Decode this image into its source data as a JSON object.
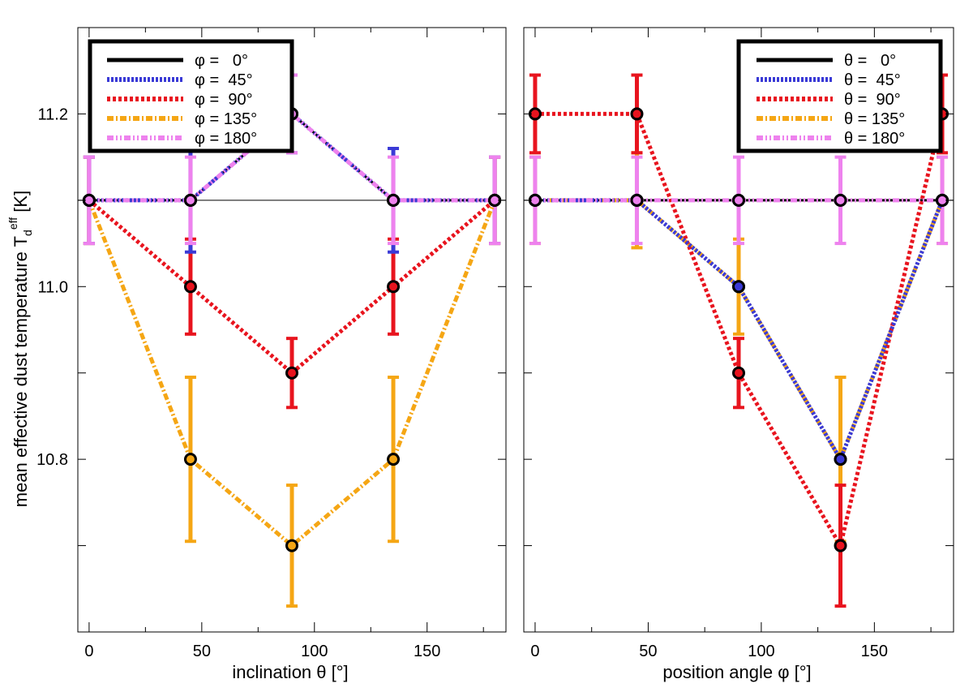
{
  "chart_data": [
    {
      "type": "line",
      "xlabel": "inclination θ [°]",
      "ylabel_main": "mean effective dust temperature T",
      "ylabel_sub": "d",
      "ylabel_sup": "eff",
      "ylabel_unit": " [K]",
      "xlim": [
        -5,
        185
      ],
      "ylim": [
        10.6,
        11.3
      ],
      "xticks": [
        0,
        50,
        100,
        150
      ],
      "yticks": [
        10.8,
        11.0,
        11.2
      ],
      "legend_position": "top-left",
      "series": [
        {
          "name": "φ =   0°",
          "color": "#000000",
          "style": "solid",
          "x": [
            0,
            45,
            90,
            135,
            180
          ],
          "y": [
            11.1,
            11.1,
            11.2,
            11.1,
            11.1
          ],
          "err": [
            0,
            0,
            0,
            0,
            0
          ]
        },
        {
          "name": "φ =  45°",
          "color": "#3a3ad6",
          "style": "dotted",
          "x": [
            0,
            45,
            90,
            135,
            180
          ],
          "y": [
            11.1,
            11.1,
            11.2,
            11.1,
            11.1
          ],
          "err": [
            0.05,
            0.06,
            0.045,
            0.06,
            0.05
          ]
        },
        {
          "name": "φ =  90°",
          "color": "#e8141e",
          "style": "dashed",
          "x": [
            0,
            45,
            90,
            135,
            180
          ],
          "y": [
            11.1,
            11.0,
            10.9,
            11.0,
            11.1
          ],
          "err": [
            0.05,
            0.055,
            0.04,
            0.055,
            0.05
          ]
        },
        {
          "name": "φ = 135°",
          "color": "#f5a614",
          "style": "dashdot",
          "x": [
            0,
            45,
            90,
            135,
            180
          ],
          "y": [
            11.1,
            10.8,
            10.7,
            10.8,
            11.1
          ],
          "err": [
            0.05,
            0.095,
            0.07,
            0.095,
            0.05
          ]
        },
        {
          "name": "φ = 180°",
          "color": "#ee82ee",
          "style": "dashdotdot",
          "x": [
            0,
            45,
            90,
            135,
            180
          ],
          "y": [
            11.1,
            11.1,
            11.2,
            11.1,
            11.1
          ],
          "err": [
            0.05,
            0.05,
            0.045,
            0.05,
            0.05
          ]
        }
      ]
    },
    {
      "type": "line",
      "xlabel": "position angle φ [°]",
      "xlim": [
        -5,
        185
      ],
      "ylim": [
        10.6,
        11.3
      ],
      "xticks": [
        0,
        50,
        100,
        150
      ],
      "yticks": [
        10.8,
        11.0,
        11.2
      ],
      "legend_position": "top-right",
      "series": [
        {
          "name": "θ =   0°",
          "color": "#000000",
          "style": "solid",
          "x": [
            0,
            45,
            90,
            135,
            180
          ],
          "y": [
            11.1,
            11.1,
            11.1,
            11.1,
            11.1
          ],
          "err": [
            0,
            0,
            0,
            0,
            0
          ]
        },
        {
          "name": "θ =  45°",
          "color": "#3a3ad6",
          "style": "dotted",
          "x": [
            0,
            45,
            90,
            135,
            180
          ],
          "y": [
            11.1,
            11.1,
            11.0,
            10.8,
            11.1
          ],
          "err": [
            0,
            0,
            0,
            0,
            0
          ]
        },
        {
          "name": "θ =  90°",
          "color": "#e8141e",
          "style": "dashed",
          "x": [
            0,
            45,
            90,
            135,
            180
          ],
          "y": [
            11.2,
            11.2,
            10.9,
            10.7,
            11.2
          ],
          "err": [
            0.045,
            0.045,
            0.04,
            0.07,
            0.045
          ]
        },
        {
          "name": "θ = 135°",
          "color": "#f5a614",
          "style": "dashdot",
          "x": [
            0,
            45,
            90,
            135,
            180
          ],
          "y": [
            11.1,
            11.1,
            11.0,
            10.8,
            11.1
          ],
          "err": [
            0.05,
            0.055,
            0.055,
            0.095,
            0.05
          ]
        },
        {
          "name": "θ = 180°",
          "color": "#ee82ee",
          "style": "dashdotdot",
          "x": [
            0,
            45,
            90,
            135,
            180
          ],
          "y": [
            11.1,
            11.1,
            11.1,
            11.1,
            11.1
          ],
          "err": [
            0.05,
            0.05,
            0.05,
            0.05,
            0.05
          ]
        }
      ]
    }
  ]
}
